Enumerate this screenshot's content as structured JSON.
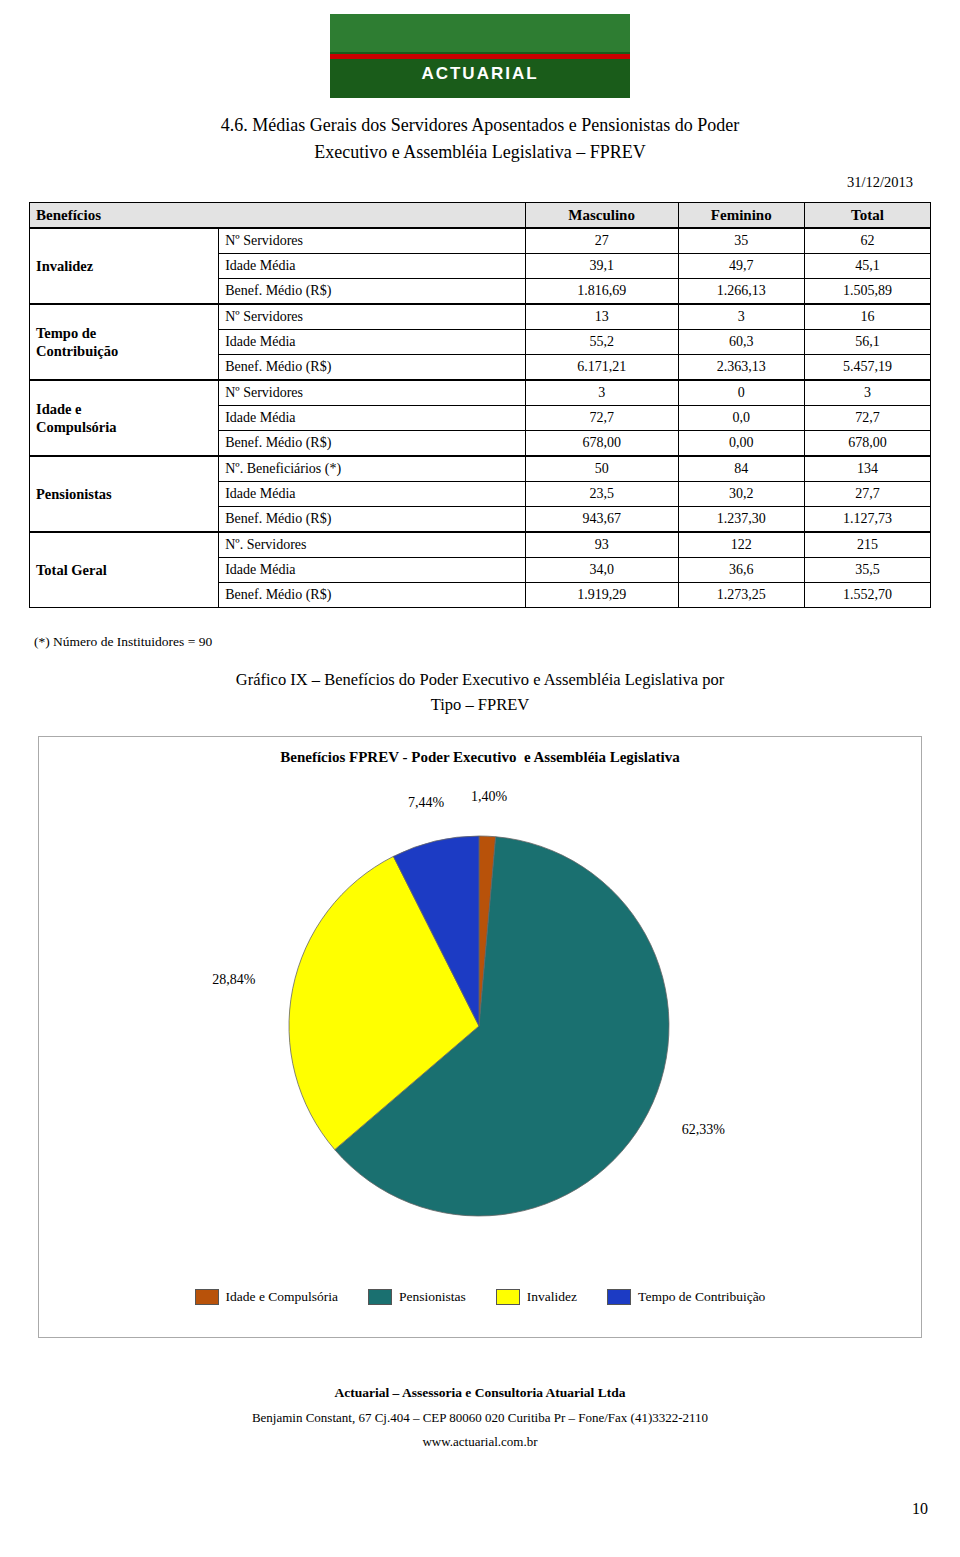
{
  "chart_data": [
    {
      "type": "table",
      "title": "4.6. Médias Gerais dos Servidores Aposentados e Pensionistas do Poder\nExecutivo e Assembléia Legislativa – FPREV",
      "subtitle": "31/12/2013",
      "columns": [
        "Benefícios",
        "Masculino",
        "Feminino",
        "Total"
      ],
      "groups": [
        {
          "label": "Invalidez",
          "rows": [
            [
              "Nº Servidores",
              "27",
              "35",
              "62"
            ],
            [
              "Idade Média",
              "39,1",
              "49,7",
              "45,1"
            ],
            [
              "Benef. Médio (R$)",
              "1.816,69",
              "1.266,13",
              "1.505,89"
            ]
          ]
        },
        {
          "label": "Tempo de\nContribuição",
          "rows": [
            [
              "Nº Servidores",
              "13",
              "3",
              "16"
            ],
            [
              "Idade Média",
              "55,2",
              "60,3",
              "56,1"
            ],
            [
              "Benef. Médio (R$)",
              "6.171,21",
              "2.363,13",
              "5.457,19"
            ]
          ]
        },
        {
          "label": "Idade e\nCompulsória",
          "rows": [
            [
              "Nº Servidores",
              "3",
              "0",
              "3"
            ],
            [
              "Idade Média",
              "72,7",
              "0,0",
              "72,7"
            ],
            [
              "Benef. Médio (R$)",
              "678,00",
              "0,00",
              "678,00"
            ]
          ]
        },
        {
          "label": "Pensionistas",
          "rows": [
            [
              "Nº. Beneficiários (*)",
              "50",
              "84",
              "134"
            ],
            [
              "Idade Média",
              "23,5",
              "30,2",
              "27,7"
            ],
            [
              "Benef. Médio (R$)",
              "943,67",
              "1.237,30",
              "1.127,73"
            ]
          ]
        },
        {
          "label": "Total Geral",
          "rows": [
            [
              "Nº. Servidores",
              "93",
              "122",
              "215"
            ],
            [
              "Idade Média",
              "34,0",
              "36,6",
              "35,5"
            ],
            [
              "Benef. Médio (R$)",
              "1.919,29",
              "1.273,25",
              "1.552,70"
            ]
          ]
        }
      ],
      "annotations": [
        "(*) Número de Instituidores = 90"
      ]
    },
    {
      "type": "pie",
      "title": "Gráfico IX – Benefícios do Poder Executivo e Assembléia Legislativa por\nTipo – FPREV",
      "subtitle": "Benefícios FPREV - Poder Executivo  e Assembléia Legislativa",
      "categories": [
        "Idade e Compulsória",
        "Pensionistas",
        "Invalidez",
        "Tempo de Contribuição"
      ],
      "values": [
        1.4,
        62.33,
        28.84,
        7.44
      ],
      "value_labels": [
        "1,40%",
        "62,33%",
        "28,84%",
        "7,44%"
      ],
      "colors": [
        "#B8520A",
        "#1A7070",
        "#FFFF00",
        "#1C3BC4"
      ],
      "data_labels": true,
      "legend": "bottom"
    }
  ],
  "page": {
    "logo": "ACTUARIAL",
    "footer": [
      "Actuarial – Assessoria e Consultoria Atuarial Ltda",
      "Benjamin Constant, 67 Cj.404 – CEP 80060 020 Curitiba Pr – Fone/Fax (41)3322-2110",
      "www.actuarial.com.br"
    ],
    "page_number": "10"
  }
}
